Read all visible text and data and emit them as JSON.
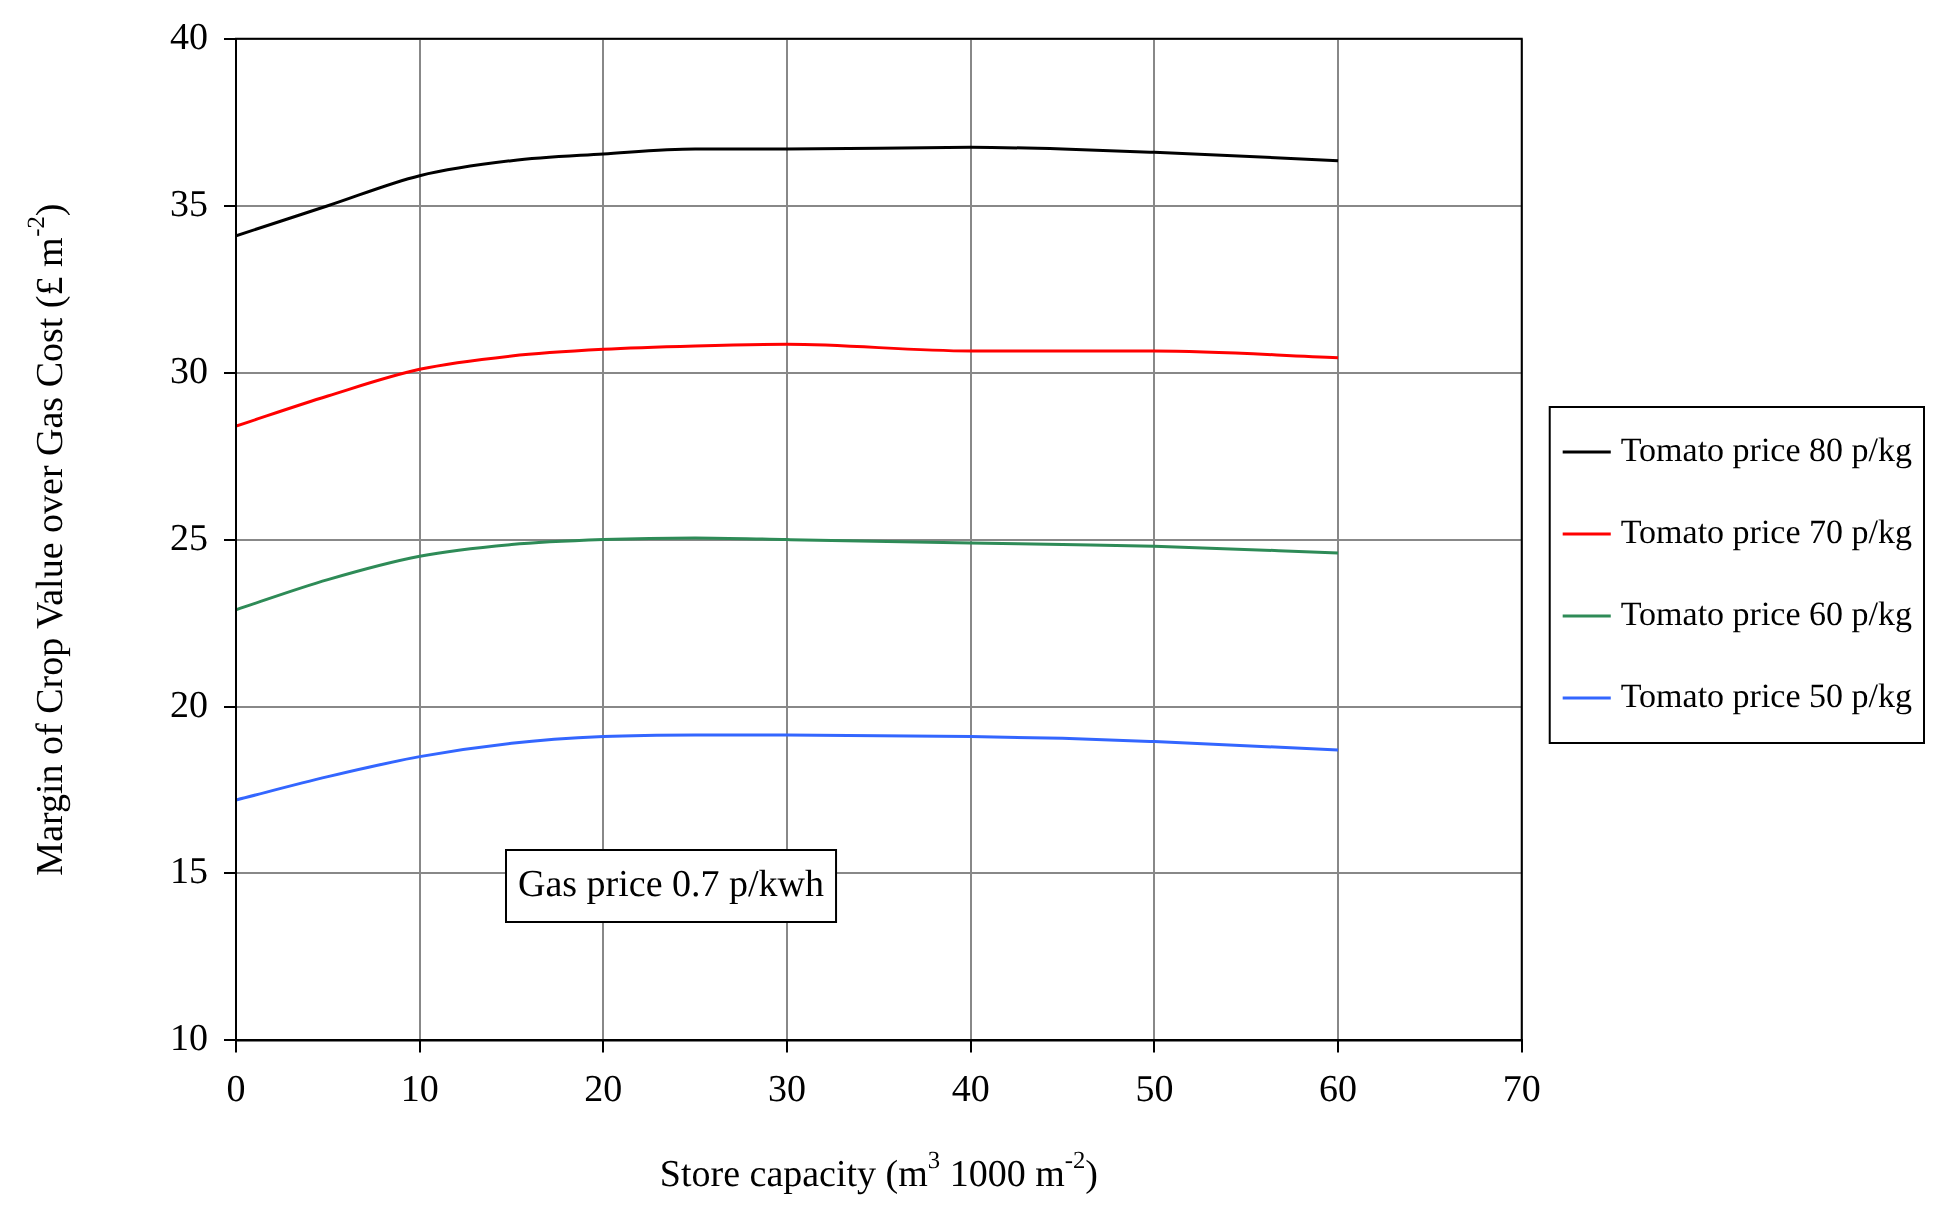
{
  "chart_data": {
    "type": "line",
    "xlabel": "Store capacity (m$^{3}$ 1000 m$^{-2}$)",
    "ylabel": "Margin of Crop Value over Gas Cost (£ m$^{-2}$)",
    "x": [
      0,
      5,
      10,
      15,
      20,
      25,
      30,
      40,
      45,
      50,
      60
    ],
    "series": [
      {
        "name": "Tomato price 80 p/kg",
        "color": "#000000",
        "values": [
          34.1,
          35.0,
          35.9,
          36.35,
          36.55,
          36.7,
          36.7,
          36.75,
          36.7,
          36.6,
          36.35
        ]
      },
      {
        "name": "Tomato price 70 p/kg",
        "color": "#ff0000",
        "values": [
          28.4,
          29.3,
          30.1,
          30.5,
          30.7,
          30.8,
          30.85,
          30.65,
          30.65,
          30.65,
          30.45
        ]
      },
      {
        "name": "Tomato price 60 p/kg",
        "color": "#2e8b57",
        "values": [
          22.9,
          23.8,
          24.5,
          24.85,
          25.0,
          25.05,
          25.0,
          24.9,
          24.85,
          24.8,
          24.6
        ]
      },
      {
        "name": "Tomato price 50 p/kg",
        "color": "#3366ff",
        "values": [
          17.2,
          17.9,
          18.5,
          18.9,
          19.1,
          19.15,
          19.15,
          19.1,
          19.05,
          18.95,
          18.7
        ]
      }
    ],
    "xlim": [
      0,
      70
    ],
    "xticks": [
      0,
      10,
      20,
      30,
      40,
      50,
      60,
      70
    ],
    "ylim": [
      10,
      40
    ],
    "yticks": [
      10,
      15,
      20,
      25,
      30,
      35,
      40
    ],
    "grid": true,
    "legend": "right",
    "marker": "none",
    "line_style": "solid",
    "annotations": [
      "Gas price 0.7 p/kwh"
    ]
  }
}
